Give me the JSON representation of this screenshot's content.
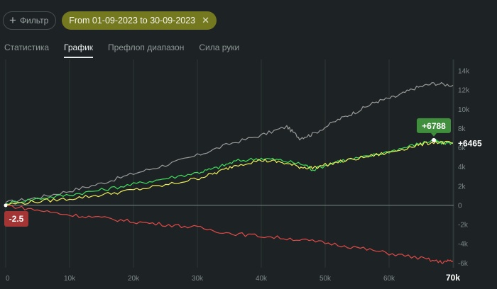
{
  "filter": {
    "label": "Фильтр",
    "icon": "plus-icon"
  },
  "date_range": {
    "label": "From 01-09-2023 to 30-09-2023",
    "close_icon": "close-icon"
  },
  "tabs": [
    {
      "label": "Статистика",
      "active": false
    },
    {
      "label": "График",
      "active": true
    },
    {
      "label": "Префлоп диапазон",
      "active": false
    },
    {
      "label": "Сила руки",
      "active": false
    }
  ],
  "chart_data": {
    "type": "line",
    "x_axis": {
      "ticks": [
        "0",
        "10k",
        "20k",
        "30k",
        "40k",
        "50k",
        "60k",
        "70k"
      ],
      "current_tick": "70k",
      "range": [
        0,
        70000
      ]
    },
    "y_axis": {
      "ticks": [
        "14k",
        "12k",
        "10k",
        "8k",
        "6k",
        "4k",
        "2k",
        "0",
        "-2k",
        "-4k",
        "-6k"
      ],
      "range": [
        -6200,
        14300
      ]
    },
    "grid": "vertical",
    "series": [
      {
        "color": "#9a9a9a",
        "points": [
          [
            0,
            300
          ],
          [
            5000,
            800
          ],
          [
            10000,
            1500
          ],
          [
            15000,
            2300
          ],
          [
            20000,
            3300
          ],
          [
            25000,
            4200
          ],
          [
            30000,
            5200
          ],
          [
            35000,
            6400
          ],
          [
            40000,
            7300
          ],
          [
            44000,
            8200
          ],
          [
            46000,
            7000
          ],
          [
            48000,
            7400
          ],
          [
            52000,
            8900
          ],
          [
            55000,
            9800
          ],
          [
            58000,
            10800
          ],
          [
            61000,
            11300
          ],
          [
            64000,
            12200
          ],
          [
            67000,
            12700
          ],
          [
            70000,
            12500
          ]
        ]
      },
      {
        "color": "#3fe05a",
        "points": [
          [
            0,
            200
          ],
          [
            5000,
            700
          ],
          [
            10000,
            1100
          ],
          [
            15000,
            1600
          ],
          [
            20000,
            2200
          ],
          [
            25000,
            2800
          ],
          [
            30000,
            3400
          ],
          [
            33000,
            3900
          ],
          [
            36000,
            4600
          ],
          [
            40000,
            4900
          ],
          [
            43000,
            4700
          ],
          [
            47000,
            4200
          ],
          [
            48000,
            3700
          ],
          [
            52000,
            4600
          ],
          [
            56000,
            5000
          ],
          [
            60000,
            5600
          ],
          [
            64000,
            6300
          ],
          [
            67000,
            6788
          ],
          [
            68000,
            6500
          ],
          [
            70000,
            6500
          ]
        ]
      },
      {
        "color": "#f0ee5a",
        "points": [
          [
            0,
            100
          ],
          [
            5000,
            400
          ],
          [
            10000,
            700
          ],
          [
            15000,
            1100
          ],
          [
            20000,
            1600
          ],
          [
            25000,
            2100
          ],
          [
            30000,
            2800
          ],
          [
            33000,
            3400
          ],
          [
            36000,
            4200
          ],
          [
            40000,
            4700
          ],
          [
            43000,
            4500
          ],
          [
            46000,
            4000
          ],
          [
            48000,
            3900
          ],
          [
            52000,
            4500
          ],
          [
            56000,
            5000
          ],
          [
            60000,
            5500
          ],
          [
            64000,
            6200
          ],
          [
            67000,
            6600
          ],
          [
            70000,
            6465
          ]
        ]
      },
      {
        "color": "#e14a48",
        "points": [
          [
            0,
            -2.5
          ],
          [
            5000,
            -500
          ],
          [
            10000,
            -1000
          ],
          [
            15000,
            -1300
          ],
          [
            20000,
            -1700
          ],
          [
            25000,
            -2000
          ],
          [
            30000,
            -2300
          ],
          [
            35000,
            -2900
          ],
          [
            40000,
            -3200
          ],
          [
            45000,
            -3500
          ],
          [
            50000,
            -3900
          ],
          [
            55000,
            -4400
          ],
          [
            60000,
            -5000
          ],
          [
            65000,
            -5500
          ],
          [
            68000,
            -5900
          ],
          [
            70000,
            -5800
          ]
        ]
      }
    ],
    "labels": {
      "peak": "+6788",
      "end": "+6465",
      "start": "-2.5"
    }
  }
}
